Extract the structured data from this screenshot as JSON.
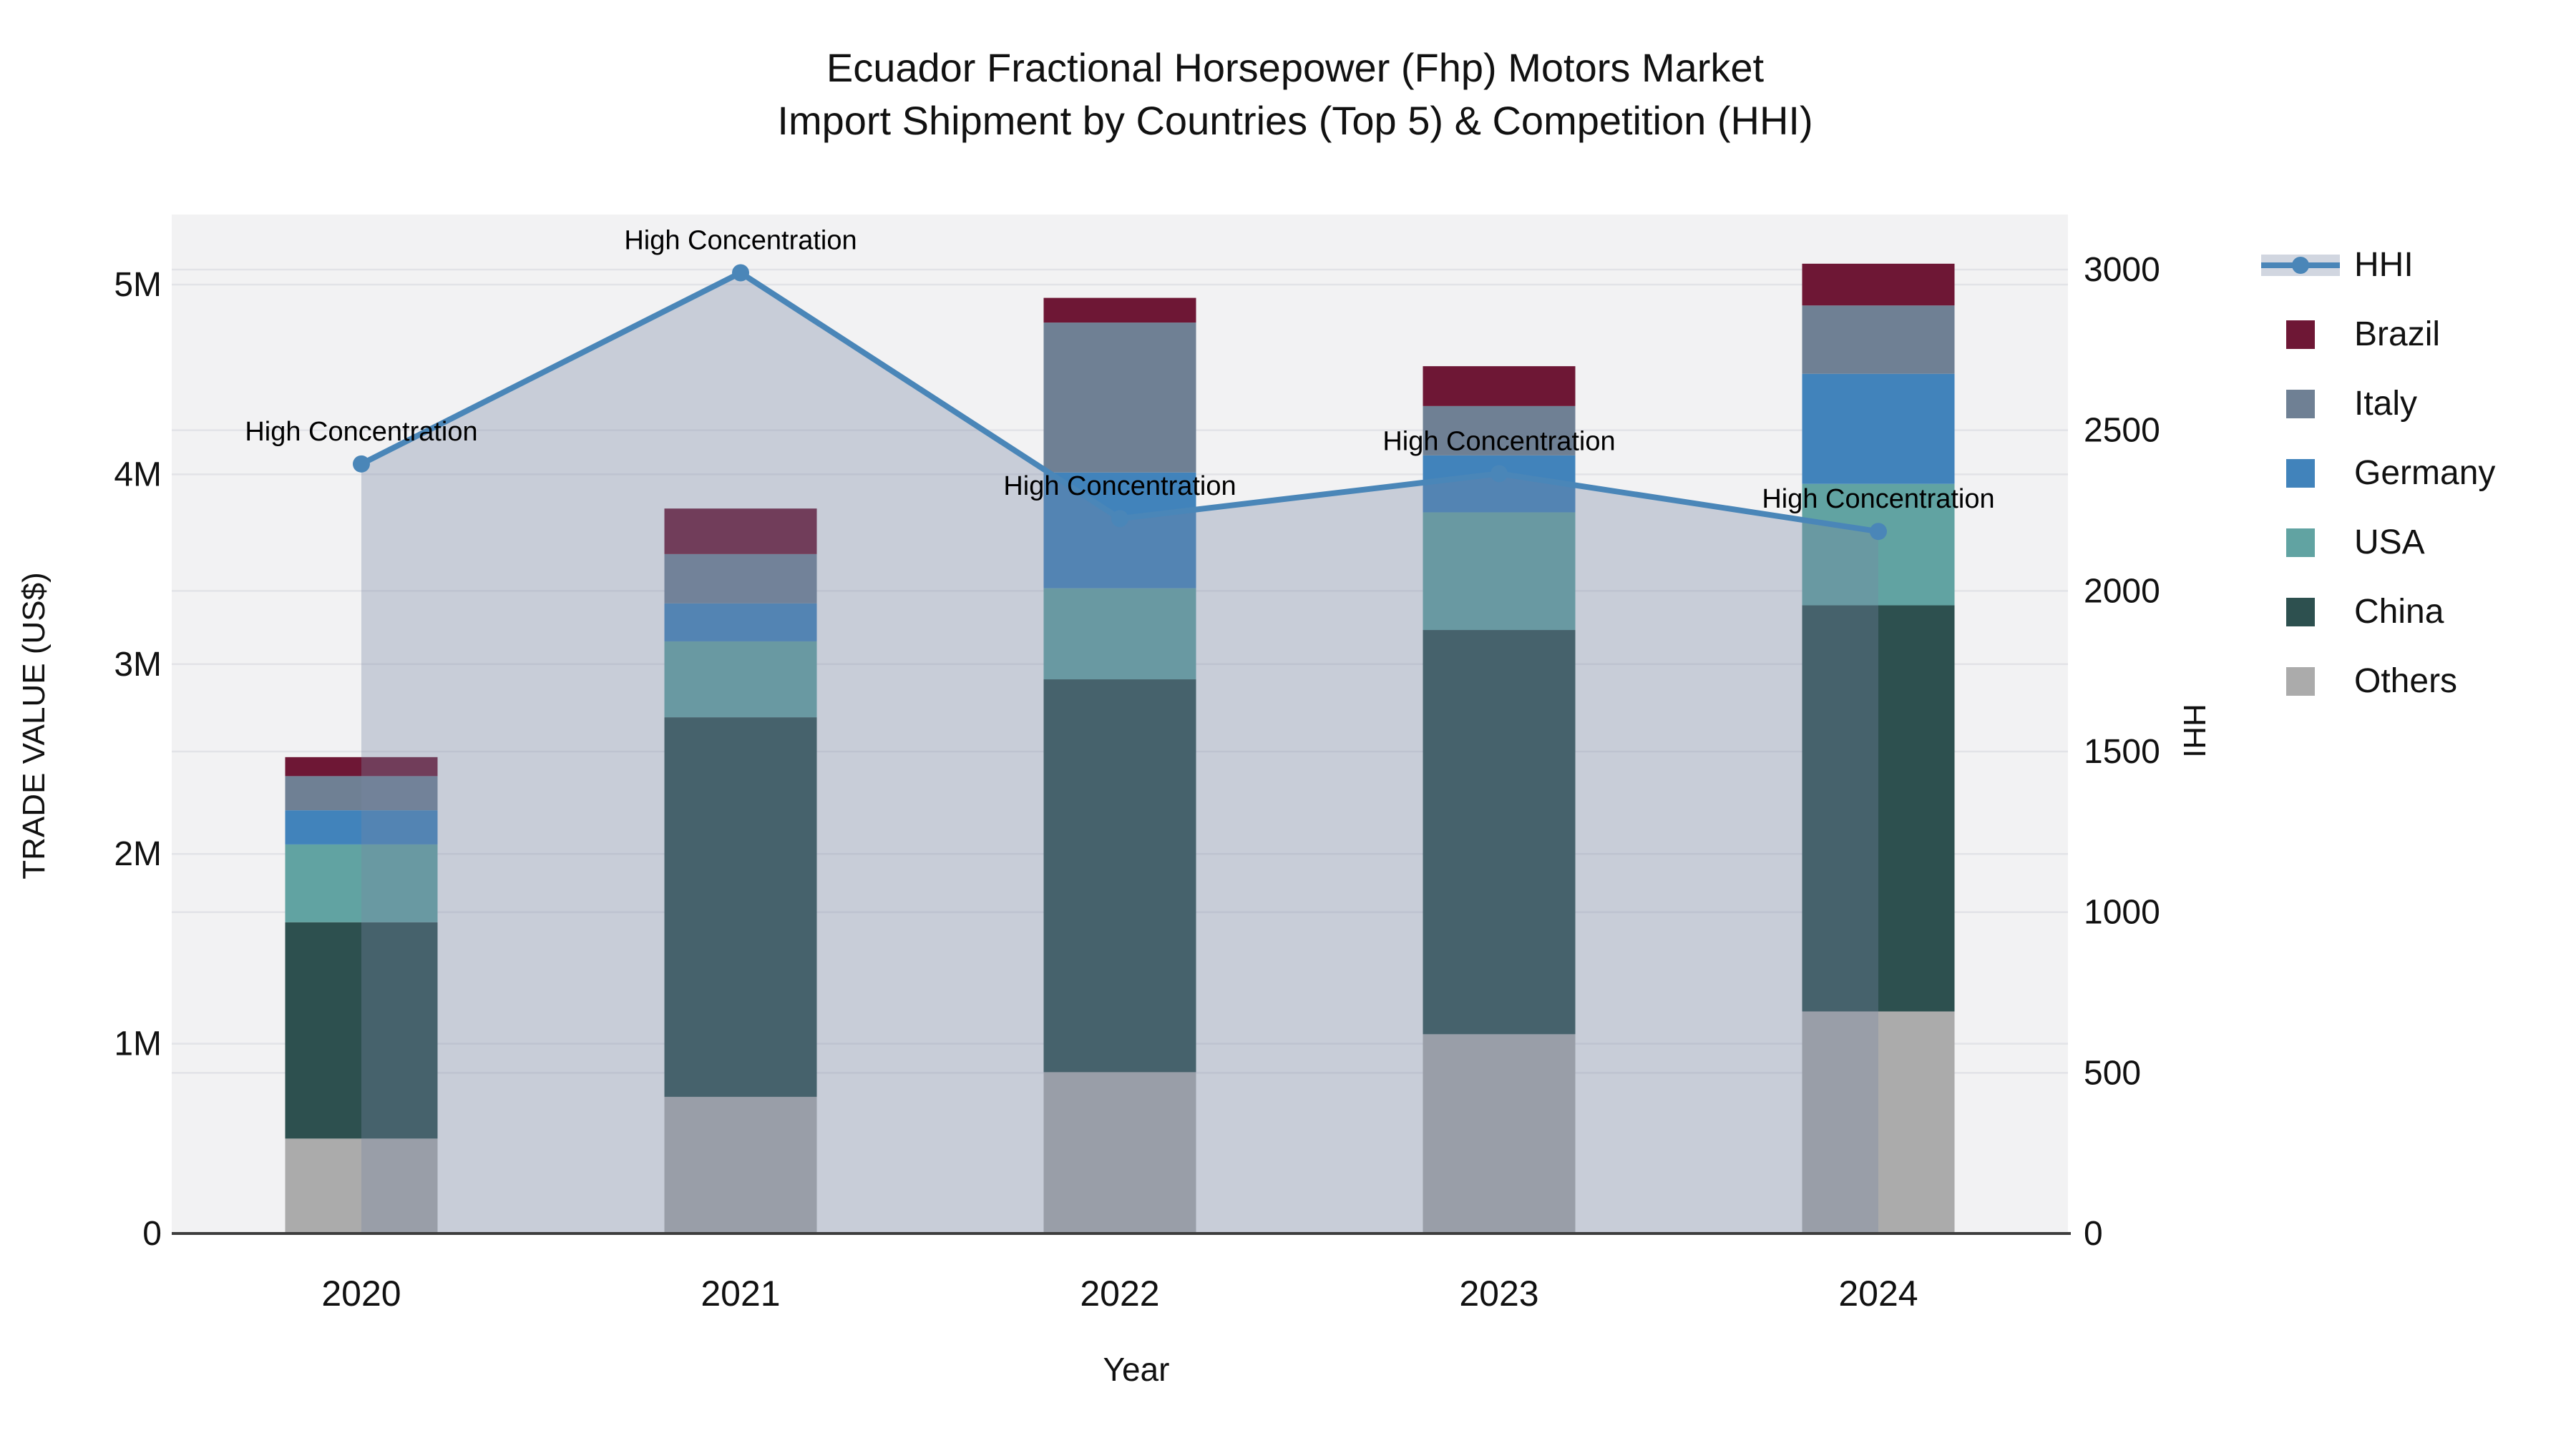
{
  "title": {
    "line1": "Ecuador Fractional Horsepower (Fhp) Motors Market",
    "line2": "Import Shipment by Countries (Top 5) & Competition (HHI)"
  },
  "legend": {
    "position": "right",
    "items": [
      {
        "label": "HHI",
        "type": "line",
        "color": "#4a86b8"
      },
      {
        "label": "Brazil",
        "type": "swatch",
        "color": "#6e1735"
      },
      {
        "label": "Italy",
        "type": "swatch",
        "color": "#6f8094"
      },
      {
        "label": "Germany",
        "type": "swatch",
        "color": "#4183bb"
      },
      {
        "label": "USA",
        "type": "swatch",
        "color": "#61a3a2"
      },
      {
        "label": "China",
        "type": "swatch",
        "color": "#2d504f"
      },
      {
        "label": "Others",
        "type": "swatch",
        "color": "#ababab"
      }
    ]
  },
  "chart_data": {
    "type": "bar+line",
    "title": "Ecuador Fractional Horsepower (Fhp) Motors Market Import Shipment by Countries (Top 5) & Competition (HHI)",
    "categories": [
      "2020",
      "2021",
      "2022",
      "2023",
      "2024"
    ],
    "stack_note": "stacked bars, series listed bottom-to-top, values in millions US$",
    "series": [
      {
        "name": "Others",
        "color": "#ababab",
        "values_musd": [
          0.5,
          0.72,
          0.85,
          1.05,
          1.17
        ]
      },
      {
        "name": "China",
        "color": "#2d504f",
        "values_musd": [
          1.14,
          2.0,
          2.07,
          2.13,
          2.14
        ]
      },
      {
        "name": "USA",
        "color": "#61a3a2",
        "values_musd": [
          0.41,
          0.4,
          0.48,
          0.62,
          0.64
        ]
      },
      {
        "name": "Germany",
        "color": "#4183bb",
        "values_musd": [
          0.18,
          0.2,
          0.61,
          0.3,
          0.58
        ]
      },
      {
        "name": "Italy",
        "color": "#6f8094",
        "values_musd": [
          0.18,
          0.26,
          0.79,
          0.26,
          0.36
        ]
      },
      {
        "name": "Brazil",
        "color": "#6e1735",
        "values_musd": [
          0.1,
          0.24,
          0.13,
          0.21,
          0.22
        ]
      }
    ],
    "bar_totals_musd": [
      2.51,
      3.82,
      4.93,
      4.57,
      5.11
    ],
    "line_series": {
      "name": "HHI",
      "color": "#4a86b8",
      "area_fill": "rgba(121,136,164,0.34)",
      "values": [
        2395,
        2990,
        2225,
        2365,
        2185
      ],
      "annotation": "High Concentration",
      "annotate_every_point": true
    },
    "left_axis": {
      "label": "TRADE VALUE (US$)",
      "ticks": [
        "0",
        "1M",
        "2M",
        "3M",
        "4M",
        "5M"
      ],
      "max_musd": 5
    },
    "right_axis": {
      "label": "HHI",
      "ticks": [
        "0",
        "500",
        "1000",
        "1500",
        "2000",
        "2500",
        "3000"
      ],
      "max": 3000
    },
    "x_axis": {
      "label": "Year"
    },
    "grid": true,
    "plot_background": "#f2f2f3",
    "gridline_color": "#e2e3e7",
    "axis_line_color": "#3d3d3d",
    "legend_position": "right"
  }
}
